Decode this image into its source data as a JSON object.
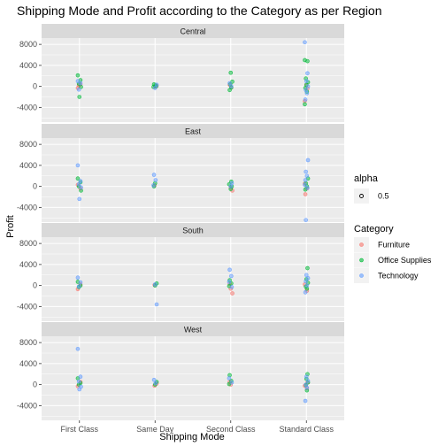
{
  "chart_data": {
    "type": "scatter",
    "title": "Shipping Mode and Profit according to the Category as per Region",
    "xlabel": "Shipping Mode",
    "ylabel": "Profit",
    "categories": [
      "First Class",
      "Same Day",
      "Second Class",
      "Standard Class"
    ],
    "ylim": [
      -6800,
      9200
    ],
    "yticks": [
      -4000,
      0,
      4000,
      8000
    ],
    "yticklabels": [
      "-4000",
      "0",
      "4000",
      "8000"
    ],
    "grid": true,
    "legend_placement": "right",
    "legends": [
      {
        "title": "alpha",
        "entries": [
          {
            "label": "0.5",
            "color": "#000000"
          }
        ]
      },
      {
        "title": "Category",
        "entries": [
          {
            "label": "Furniture",
            "color": "#F8766D"
          },
          {
            "label": "Office Supplies",
            "color": "#00BA38"
          },
          {
            "label": "Technology",
            "color": "#619CFF"
          }
        ]
      }
    ],
    "panels": [
      {
        "region": "Central",
        "series": [
          {
            "name": "Furniture",
            "points": [
              {
                "x": "First Class",
                "y": -300
              },
              {
                "x": "First Class",
                "y": 400
              },
              {
                "x": "First Class",
                "y": 200
              },
              {
                "x": "Same Day",
                "y": 100
              },
              {
                "x": "Same Day",
                "y": -100
              },
              {
                "x": "Second Class",
                "y": 300
              },
              {
                "x": "Second Class",
                "y": -200
              },
              {
                "x": "Standard Class",
                "y": -2800
              },
              {
                "x": "Standard Class",
                "y": -400
              },
              {
                "x": "Standard Class",
                "y": 300
              }
            ]
          },
          {
            "name": "Office Supplies",
            "points": [
              {
                "x": "First Class",
                "y": 2100
              },
              {
                "x": "First Class",
                "y": 1200
              },
              {
                "x": "First Class",
                "y": 500
              },
              {
                "x": "First Class",
                "y": -100
              },
              {
                "x": "First Class",
                "y": -2000
              },
              {
                "x": "Same Day",
                "y": 400
              },
              {
                "x": "Same Day",
                "y": 200
              },
              {
                "x": "Same Day",
                "y": -100
              },
              {
                "x": "Same Day",
                "y": 0
              },
              {
                "x": "Second Class",
                "y": 2600
              },
              {
                "x": "Second Class",
                "y": 900
              },
              {
                "x": "Second Class",
                "y": 400
              },
              {
                "x": "Second Class",
                "y": -200
              },
              {
                "x": "Second Class",
                "y": -700
              },
              {
                "x": "Standard Class",
                "y": 5000
              },
              {
                "x": "Standard Class",
                "y": 4800
              },
              {
                "x": "Standard Class",
                "y": 1500
              },
              {
                "x": "Standard Class",
                "y": 800
              },
              {
                "x": "Standard Class",
                "y": 300
              },
              {
                "x": "Standard Class",
                "y": -300
              },
              {
                "x": "Standard Class",
                "y": -1000
              },
              {
                "x": "Standard Class",
                "y": -3400
              }
            ]
          },
          {
            "name": "Technology",
            "points": [
              {
                "x": "First Class",
                "y": 1000
              },
              {
                "x": "First Class",
                "y": 600
              },
              {
                "x": "First Class",
                "y": -600
              },
              {
                "x": "Same Day",
                "y": 300
              },
              {
                "x": "Same Day",
                "y": -300
              },
              {
                "x": "Second Class",
                "y": 600
              },
              {
                "x": "Second Class",
                "y": 0
              },
              {
                "x": "Standard Class",
                "y": 8400
              },
              {
                "x": "Standard Class",
                "y": 2500
              },
              {
                "x": "Standard Class",
                "y": 1000
              },
              {
                "x": "Standard Class",
                "y": 0
              },
              {
                "x": "Standard Class",
                "y": -700
              },
              {
                "x": "Standard Class",
                "y": -1300
              },
              {
                "x": "Standard Class",
                "y": -2500
              }
            ]
          }
        ]
      },
      {
        "region": "East",
        "series": [
          {
            "name": "Furniture",
            "points": [
              {
                "x": "First Class",
                "y": 300
              },
              {
                "x": "First Class",
                "y": -400
              },
              {
                "x": "Same Day",
                "y": 200
              },
              {
                "x": "Second Class",
                "y": -800
              },
              {
                "x": "Second Class",
                "y": -200
              },
              {
                "x": "Standard Class",
                "y": -1500
              },
              {
                "x": "Standard Class",
                "y": -400
              },
              {
                "x": "Standard Class",
                "y": 500
              }
            ]
          },
          {
            "name": "Office Supplies",
            "points": [
              {
                "x": "First Class",
                "y": 1500
              },
              {
                "x": "First Class",
                "y": 800
              },
              {
                "x": "First Class",
                "y": 0
              },
              {
                "x": "First Class",
                "y": -800
              },
              {
                "x": "Same Day",
                "y": 600
              },
              {
                "x": "Same Day",
                "y": 0
              },
              {
                "x": "Second Class",
                "y": 900
              },
              {
                "x": "Second Class",
                "y": 400
              },
              {
                "x": "Second Class",
                "y": 0
              },
              {
                "x": "Second Class",
                "y": -500
              },
              {
                "x": "Standard Class",
                "y": 1500
              },
              {
                "x": "Standard Class",
                "y": 600
              },
              {
                "x": "Standard Class",
                "y": 0
              },
              {
                "x": "Standard Class",
                "y": -600
              }
            ]
          },
          {
            "name": "Technology",
            "points": [
              {
                "x": "First Class",
                "y": 4000
              },
              {
                "x": "First Class",
                "y": 1000
              },
              {
                "x": "First Class",
                "y": 400
              },
              {
                "x": "First Class",
                "y": -200
              },
              {
                "x": "First Class",
                "y": -2400
              },
              {
                "x": "Same Day",
                "y": 2200
              },
              {
                "x": "Same Day",
                "y": 1200
              },
              {
                "x": "Same Day",
                "y": 200
              },
              {
                "x": "Second Class",
                "y": 600
              },
              {
                "x": "Second Class",
                "y": 0
              },
              {
                "x": "Standard Class",
                "y": 5000
              },
              {
                "x": "Standard Class",
                "y": 2800
              },
              {
                "x": "Standard Class",
                "y": 2000
              },
              {
                "x": "Standard Class",
                "y": 1200
              },
              {
                "x": "Standard Class",
                "y": 300
              },
              {
                "x": "Standard Class",
                "y": -300
              },
              {
                "x": "Standard Class",
                "y": -6400
              }
            ]
          }
        ]
      },
      {
        "region": "South",
        "series": [
          {
            "name": "Furniture",
            "points": [
              {
                "x": "First Class",
                "y": -700
              },
              {
                "x": "First Class",
                "y": 200
              },
              {
                "x": "Same Day",
                "y": 100
              },
              {
                "x": "Second Class",
                "y": -1500
              },
              {
                "x": "Second Class",
                "y": -600
              },
              {
                "x": "Second Class",
                "y": 300
              },
              {
                "x": "Standard Class",
                "y": -1000
              },
              {
                "x": "Standard Class",
                "y": 200
              }
            ]
          },
          {
            "name": "Office Supplies",
            "points": [
              {
                "x": "First Class",
                "y": 700
              },
              {
                "x": "First Class",
                "y": 0
              },
              {
                "x": "First Class",
                "y": -300
              },
              {
                "x": "Same Day",
                "y": 400
              },
              {
                "x": "Same Day",
                "y": 0
              },
              {
                "x": "Second Class",
                "y": 1000
              },
              {
                "x": "Second Class",
                "y": 400
              },
              {
                "x": "Second Class",
                "y": -100
              },
              {
                "x": "Standard Class",
                "y": 3300
              },
              {
                "x": "Standard Class",
                "y": 1200
              },
              {
                "x": "Standard Class",
                "y": 500
              },
              {
                "x": "Standard Class",
                "y": -200
              },
              {
                "x": "Standard Class",
                "y": -600
              }
            ]
          },
          {
            "name": "Technology",
            "points": [
              {
                "x": "First Class",
                "y": 1500
              },
              {
                "x": "First Class",
                "y": 600
              },
              {
                "x": "First Class",
                "y": -200
              },
              {
                "x": "Same Day",
                "y": -3600
              },
              {
                "x": "Same Day",
                "y": 200
              },
              {
                "x": "Second Class",
                "y": 3000
              },
              {
                "x": "Second Class",
                "y": 1800
              },
              {
                "x": "Second Class",
                "y": 700
              },
              {
                "x": "Second Class",
                "y": -300
              },
              {
                "x": "Standard Class",
                "y": 2000
              },
              {
                "x": "Standard Class",
                "y": 1400
              },
              {
                "x": "Standard Class",
                "y": 800
              },
              {
                "x": "Standard Class",
                "y": 0
              },
              {
                "x": "Standard Class",
                "y": -1300
              }
            ]
          }
        ]
      },
      {
        "region": "West",
        "series": [
          {
            "name": "Furniture",
            "points": [
              {
                "x": "First Class",
                "y": -300
              },
              {
                "x": "First Class",
                "y": 500
              },
              {
                "x": "Same Day",
                "y": -200
              },
              {
                "x": "Same Day",
                "y": 200
              },
              {
                "x": "Second Class",
                "y": 0
              },
              {
                "x": "Second Class",
                "y": 500
              },
              {
                "x": "Standard Class",
                "y": -700
              },
              {
                "x": "Standard Class",
                "y": -200
              },
              {
                "x": "Standard Class",
                "y": 400
              }
            ]
          },
          {
            "name": "Office Supplies",
            "points": [
              {
                "x": "First Class",
                "y": 1200
              },
              {
                "x": "First Class",
                "y": 300
              },
              {
                "x": "First Class",
                "y": 0
              },
              {
                "x": "Same Day",
                "y": 500
              },
              {
                "x": "Same Day",
                "y": 0
              },
              {
                "x": "Second Class",
                "y": 1800
              },
              {
                "x": "Second Class",
                "y": 700
              },
              {
                "x": "Second Class",
                "y": 100
              },
              {
                "x": "Standard Class",
                "y": 2000
              },
              {
                "x": "Standard Class",
                "y": 1100
              },
              {
                "x": "Standard Class",
                "y": 400
              },
              {
                "x": "Standard Class",
                "y": -100
              },
              {
                "x": "Standard Class",
                "y": -1100
              }
            ]
          },
          {
            "name": "Technology",
            "points": [
              {
                "x": "First Class",
                "y": 6800
              },
              {
                "x": "First Class",
                "y": 1500
              },
              {
                "x": "First Class",
                "y": 600
              },
              {
                "x": "First Class",
                "y": -400
              },
              {
                "x": "First Class",
                "y": -900
              },
              {
                "x": "Same Day",
                "y": 900
              },
              {
                "x": "Same Day",
                "y": 300
              },
              {
                "x": "Second Class",
                "y": 1200
              },
              {
                "x": "Second Class",
                "y": 400
              },
              {
                "x": "Standard Class",
                "y": 1500
              },
              {
                "x": "Standard Class",
                "y": 700
              },
              {
                "x": "Standard Class",
                "y": 0
              },
              {
                "x": "Standard Class",
                "y": -600
              },
              {
                "x": "Standard Class",
                "y": -3100
              }
            ]
          }
        ]
      }
    ]
  }
}
